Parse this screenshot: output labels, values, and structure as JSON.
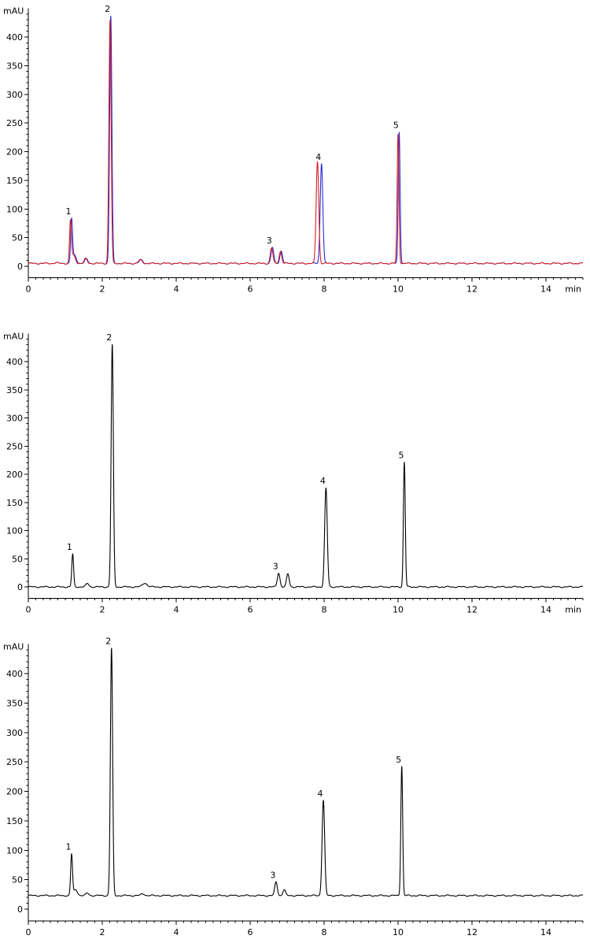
{
  "chart_data": [
    {
      "type": "line",
      "xlabel": "min",
      "ylabel": "mAU",
      "xlim": [
        0,
        15
      ],
      "ylim": [
        -20,
        450
      ],
      "x_ticks": [
        "0",
        "2",
        "4",
        "6",
        "8",
        "10",
        "12",
        "14"
      ],
      "y_ticks": [
        "0",
        "50",
        "100",
        "150",
        "200",
        "250",
        "300",
        "350",
        "400"
      ],
      "baseline": 5,
      "series": [
        {
          "color": "#2b2bd6",
          "peaks": [
            {
              "label": "",
              "rt": 0.75,
              "height": 1,
              "width": 0.05
            },
            {
              "label": "1",
              "rt": 1.17,
              "height": 75,
              "width": 0.025
            },
            {
              "label": "",
              "rt": 1.25,
              "height": 14,
              "width": 0.05
            },
            {
              "label": "",
              "rt": 1.57,
              "height": 8,
              "width": 0.04
            },
            {
              "label": "2",
              "rt": 2.23,
              "height": 432,
              "width": 0.03
            },
            {
              "label": "",
              "rt": 3.05,
              "height": 6,
              "width": 0.05
            },
            {
              "label": "3",
              "rt": 6.6,
              "height": 28,
              "width": 0.035
            },
            {
              "label": "",
              "rt": 6.84,
              "height": 22,
              "width": 0.035
            },
            {
              "label": "4",
              "rt": 7.93,
              "height": 175,
              "width": 0.035
            },
            {
              "label": "5",
              "rt": 10.03,
              "height": 230,
              "width": 0.025
            }
          ]
        },
        {
          "color": "#d42020",
          "peaks": [
            {
              "label": "",
              "rt": 0.75,
              "height": 1,
              "width": 0.05
            },
            {
              "label": "",
              "rt": 1.14,
              "height": 72,
              "width": 0.025
            },
            {
              "label": "",
              "rt": 1.22,
              "height": 14,
              "width": 0.05
            },
            {
              "label": "",
              "rt": 1.55,
              "height": 8,
              "width": 0.04
            },
            {
              "label": "",
              "rt": 2.21,
              "height": 425,
              "width": 0.03
            },
            {
              "label": "",
              "rt": 3.03,
              "height": 6,
              "width": 0.05
            },
            {
              "label": "",
              "rt": 6.58,
              "height": 27,
              "width": 0.035
            },
            {
              "label": "",
              "rt": 6.82,
              "height": 21,
              "width": 0.035
            },
            {
              "label": "",
              "rt": 7.82,
              "height": 178,
              "width": 0.035
            },
            {
              "label": "",
              "rt": 10.0,
              "height": 225,
              "width": 0.025
            }
          ]
        }
      ]
    },
    {
      "type": "line",
      "xlabel": "min",
      "ylabel": "mAU",
      "xlim": [
        0,
        15
      ],
      "ylim": [
        -20,
        450
      ],
      "x_ticks": [
        "0",
        "2",
        "4",
        "6",
        "8",
        "10",
        "12",
        "14"
      ],
      "y_ticks": [
        "0",
        "50",
        "100",
        "150",
        "200",
        "250",
        "300",
        "350",
        "400"
      ],
      "baseline": 0,
      "series": [
        {
          "color": "#000000",
          "peaks": [
            {
              "label": "1",
              "rt": 1.2,
              "height": 58,
              "width": 0.025
            },
            {
              "label": "",
              "rt": 1.6,
              "height": 6,
              "width": 0.04
            },
            {
              "label": "2",
              "rt": 2.27,
              "height": 430,
              "width": 0.03
            },
            {
              "label": "",
              "rt": 3.15,
              "height": 7,
              "width": 0.06
            },
            {
              "label": "3",
              "rt": 6.77,
              "height": 25,
              "width": 0.035
            },
            {
              "label": "",
              "rt": 7.02,
              "height": 23,
              "width": 0.035
            },
            {
              "label": "4",
              "rt": 8.05,
              "height": 175,
              "width": 0.035
            },
            {
              "label": "5",
              "rt": 10.17,
              "height": 222,
              "width": 0.025
            }
          ]
        }
      ]
    },
    {
      "type": "line",
      "xlabel": "",
      "ylabel": "mAU",
      "xlim": [
        0,
        15
      ],
      "ylim": [
        -20,
        450
      ],
      "x_ticks": [
        "0",
        "2",
        "4",
        "6",
        "8",
        "10",
        "12",
        "14"
      ],
      "y_ticks": [
        "0",
        "50",
        "100",
        "150",
        "200",
        "250",
        "300",
        "350",
        "400"
      ],
      "baseline": 23,
      "series": [
        {
          "color": "#000000",
          "peaks": [
            {
              "label": "1",
              "rt": 1.17,
              "height": 70,
              "width": 0.025
            },
            {
              "label": "",
              "rt": 1.28,
              "height": 10,
              "width": 0.05
            },
            {
              "label": "",
              "rt": 1.6,
              "height": 4,
              "width": 0.04
            },
            {
              "label": "2",
              "rt": 2.25,
              "height": 420,
              "width": 0.03
            },
            {
              "label": "",
              "rt": 3.1,
              "height": 3,
              "width": 0.05
            },
            {
              "label": "3",
              "rt": 6.7,
              "height": 23,
              "width": 0.035
            },
            {
              "label": "",
              "rt": 6.92,
              "height": 10,
              "width": 0.035
            },
            {
              "label": "4",
              "rt": 7.98,
              "height": 162,
              "width": 0.035
            },
            {
              "label": "5",
              "rt": 10.1,
              "height": 220,
              "width": 0.025
            }
          ]
        }
      ]
    }
  ]
}
